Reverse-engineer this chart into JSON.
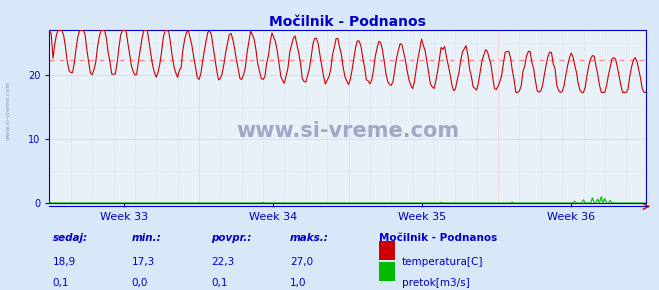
{
  "title": "Močilnik - Podnanos",
  "bg_color": "#d8e8f8",
  "plot_bg_color": "#e8f0f8",
  "grid_color_dotted": "#c8d8e8",
  "grid_color_red": "#ffcccc",
  "temp_color": "#cc0000",
  "flow_color": "#00bb00",
  "avg_line_color": "#ff8888",
  "axis_color": "#0000cc",
  "label_color": "#0000cc",
  "watermark_color": "#9999bb",
  "x_weeks": [
    "Week 33",
    "Week 34",
    "Week 35",
    "Week 36"
  ],
  "ylim": [
    0,
    27
  ],
  "yticks": [
    0,
    10,
    20
  ],
  "temp_avg": 22.3,
  "temp_min": 17.3,
  "temp_max": 27.0,
  "temp_current": 18.9,
  "flow_avg": 0.1,
  "flow_min": 0.0,
  "flow_max": 1.0,
  "flow_current": 0.1,
  "n_points": 336,
  "watermark": "www.si-vreme.com",
  "legend_title": "Močilnik - Podnanos",
  "legend_temp": "temperatura[C]",
  "legend_flow": "pretok[m3/s]",
  "stat_headers": [
    "sedaj:",
    "min.:",
    "povpr.:",
    "maks.:"
  ],
  "stat_temp": [
    "18,9",
    "17,3",
    "22,3",
    "27,0"
  ],
  "stat_flow": [
    "0,1",
    "0,0",
    "0,1",
    "1,0"
  ]
}
